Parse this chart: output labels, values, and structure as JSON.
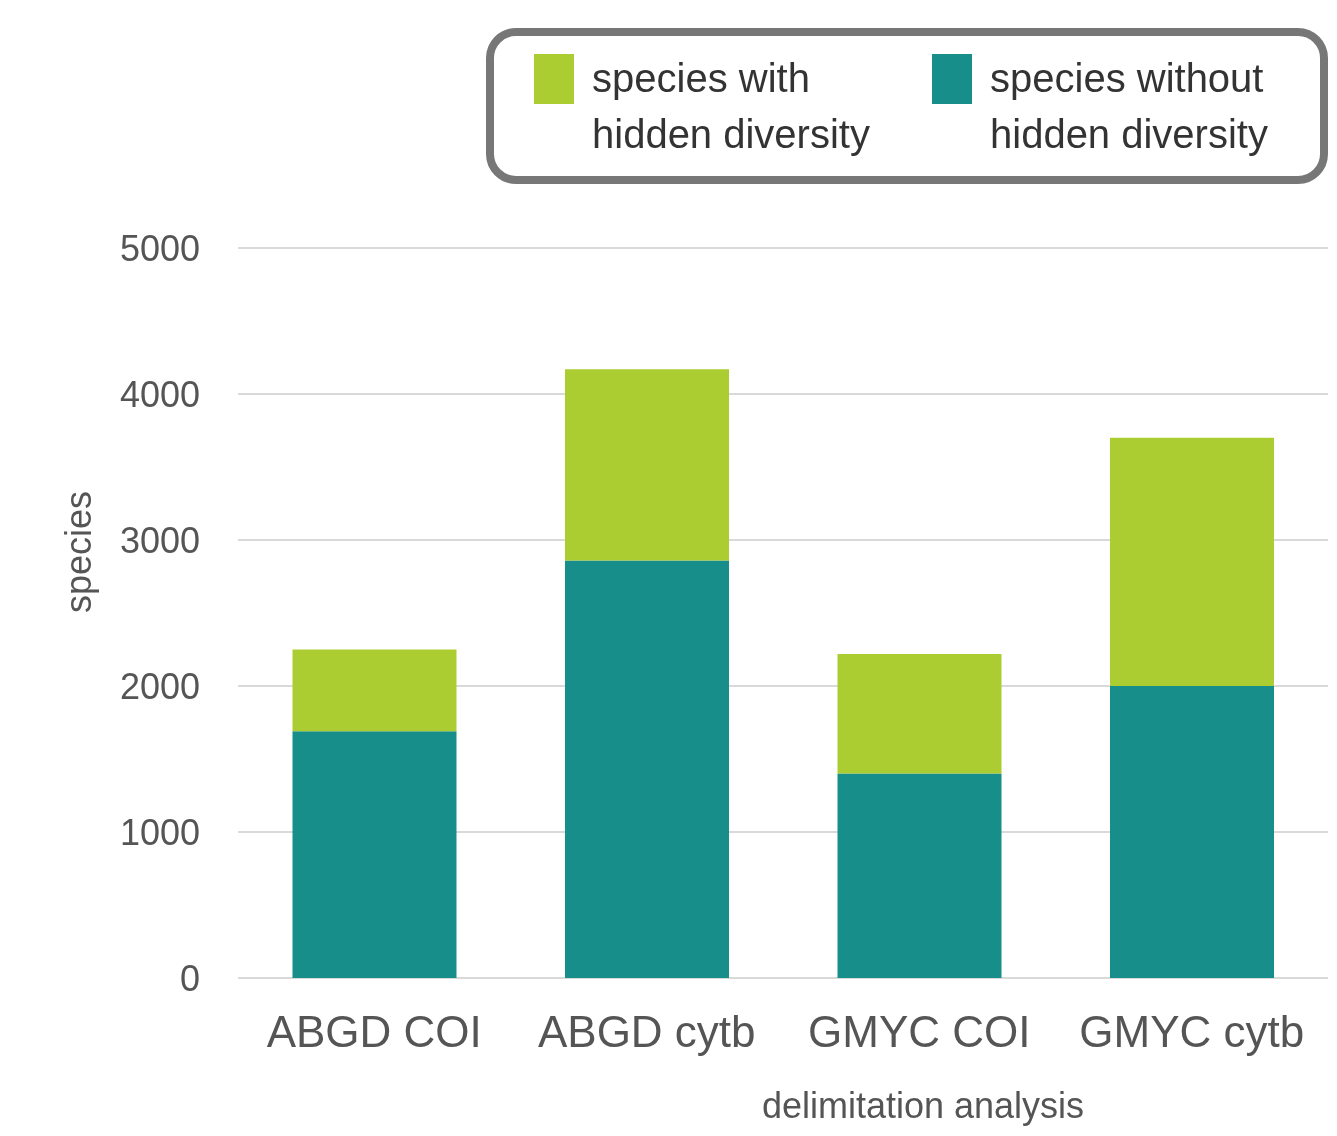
{
  "chart_data": {
    "type": "bar",
    "stacked": true,
    "xlabel": "delimitation analysis",
    "ylabel": "species",
    "categories": [
      "ABGD COI",
      "ABGD cytb",
      "GMYC COI",
      "GMYC cytb"
    ],
    "series": [
      {
        "name": "species without hidden diversity",
        "color": "#178e8a",
        "values": [
          1690,
          2860,
          1400,
          2000
        ]
      },
      {
        "name": "species with hidden diversity",
        "color": "#abcd31",
        "values": [
          560,
          1310,
          820,
          1700
        ]
      }
    ],
    "ylim": [
      0,
      5000
    ],
    "yticks": [
      0,
      1000,
      2000,
      3000,
      4000,
      5000
    ],
    "grid": "y",
    "legend": "top right"
  }
}
